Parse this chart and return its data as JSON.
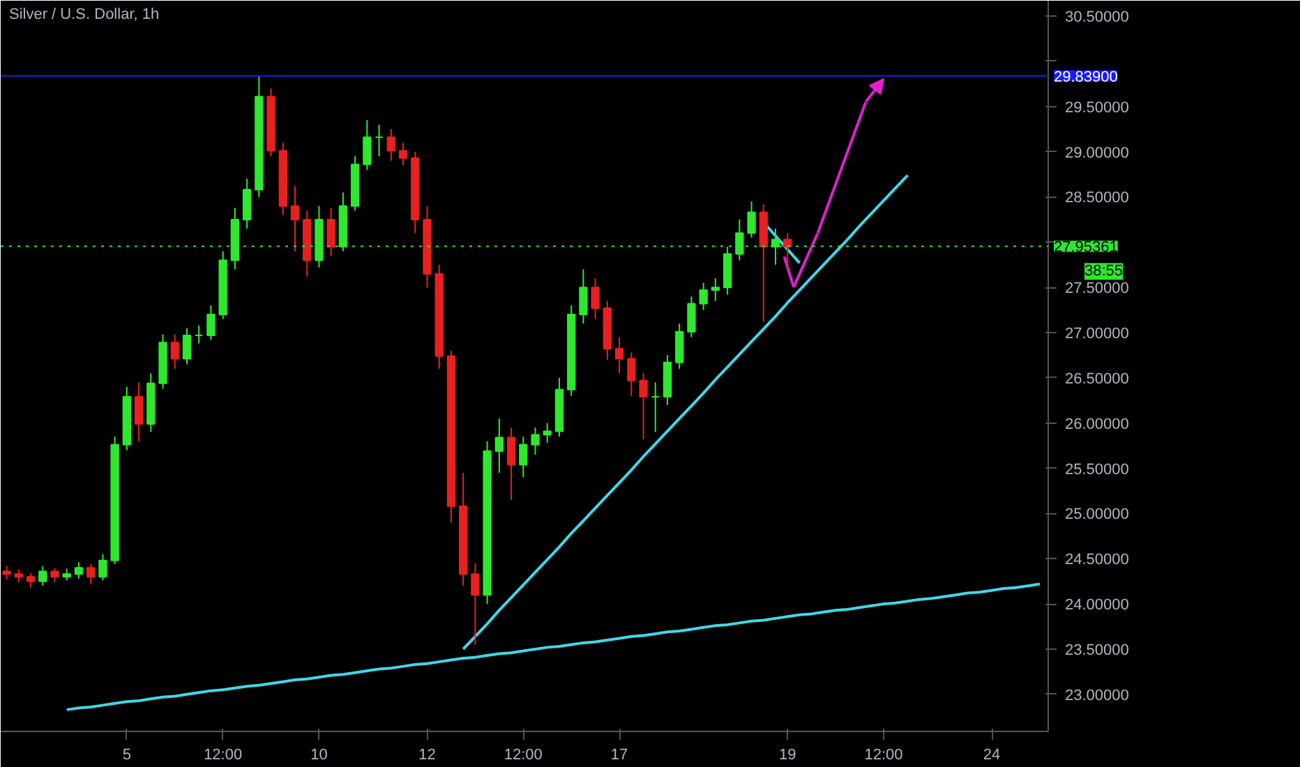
{
  "chart_data": {
    "type": "candlestick",
    "title": "Silver / U.S. Dollar, 1h",
    "categories": [
      null,
      null,
      null,
      null,
      null,
      null,
      null,
      null,
      null,
      null,
      "5",
      null,
      null,
      null,
      null,
      null,
      null,
      null,
      "12:00",
      null,
      null,
      null,
      null,
      null,
      null,
      null,
      "10",
      null,
      null,
      null,
      null,
      null,
      null,
      null,
      null,
      "12",
      null,
      null,
      null,
      null,
      null,
      null,
      null,
      "12:00",
      null,
      null,
      null,
      null,
      null,
      null,
      null,
      "17",
      null,
      null,
      null,
      null,
      null,
      null,
      null,
      null,
      null,
      null,
      null,
      null,
      null,
      "19",
      null,
      null,
      null,
      null,
      null,
      null,
      null,
      "12:00",
      null,
      null,
      null,
      null,
      null,
      null,
      null,
      null,
      "24",
      null,
      null,
      null,
      null
    ],
    "ohlc": [
      [
        24.36,
        24.42,
        24.27,
        24.33
      ],
      [
        24.33,
        24.38,
        24.24,
        24.3
      ],
      [
        24.3,
        24.34,
        24.18,
        24.25
      ],
      [
        24.25,
        24.42,
        24.2,
        24.36
      ],
      [
        24.36,
        24.4,
        24.24,
        24.3
      ],
      [
        24.3,
        24.39,
        24.26,
        24.33
      ],
      [
        24.33,
        24.46,
        24.28,
        24.4
      ],
      [
        24.4,
        24.44,
        24.22,
        24.3
      ],
      [
        24.3,
        24.55,
        24.26,
        24.48
      ],
      [
        24.48,
        25.85,
        24.44,
        25.76
      ],
      [
        25.76,
        26.4,
        25.7,
        26.29
      ],
      [
        26.29,
        26.45,
        25.8,
        25.99
      ],
      [
        25.99,
        26.55,
        25.9,
        26.44
      ],
      [
        26.44,
        26.98,
        26.38,
        26.89
      ],
      [
        26.89,
        26.98,
        26.6,
        26.71
      ],
      [
        26.71,
        27.05,
        26.65,
        26.97
      ],
      [
        26.97,
        27.08,
        26.88,
        26.97
      ],
      [
        26.97,
        27.3,
        26.92,
        27.2
      ],
      [
        27.2,
        27.9,
        27.15,
        27.8
      ],
      [
        27.8,
        28.38,
        27.7,
        28.25
      ],
      [
        28.25,
        28.7,
        28.15,
        28.58
      ],
      [
        28.58,
        29.84,
        28.5,
        29.61
      ],
      [
        29.61,
        29.7,
        28.95,
        29.01
      ],
      [
        29.01,
        29.1,
        28.3,
        28.4
      ],
      [
        28.4,
        28.62,
        27.9,
        28.25
      ],
      [
        28.25,
        28.35,
        27.62,
        27.8
      ],
      [
        27.8,
        28.4,
        27.72,
        28.25
      ],
      [
        28.25,
        28.38,
        27.85,
        27.95
      ],
      [
        27.95,
        28.55,
        27.9,
        28.4
      ],
      [
        28.4,
        28.95,
        28.35,
        28.86
      ],
      [
        28.86,
        29.35,
        28.8,
        29.16
      ],
      [
        29.16,
        29.3,
        28.95,
        29.16
      ],
      [
        29.16,
        29.25,
        28.9,
        29.01
      ],
      [
        29.01,
        29.1,
        28.85,
        28.93
      ],
      [
        28.93,
        29.0,
        28.1,
        28.25
      ],
      [
        28.25,
        28.4,
        27.5,
        27.65
      ],
      [
        27.65,
        27.75,
        26.6,
        26.74
      ],
      [
        26.74,
        26.8,
        24.9,
        25.08
      ],
      [
        25.08,
        25.45,
        24.2,
        24.33
      ],
      [
        24.33,
        24.45,
        23.55,
        24.1
      ],
      [
        24.1,
        25.8,
        24.0,
        25.69
      ],
      [
        25.69,
        26.05,
        25.45,
        25.84
      ],
      [
        25.84,
        25.95,
        25.15,
        25.54
      ],
      [
        25.54,
        25.85,
        25.4,
        25.76
      ],
      [
        25.76,
        25.95,
        25.65,
        25.87
      ],
      [
        25.87,
        26.0,
        25.78,
        25.91
      ],
      [
        25.91,
        26.5,
        25.85,
        26.37
      ],
      [
        26.37,
        27.3,
        26.3,
        27.2
      ],
      [
        27.2,
        27.7,
        27.1,
        27.5
      ],
      [
        27.5,
        27.6,
        27.15,
        27.27
      ],
      [
        27.27,
        27.35,
        26.7,
        26.82
      ],
      [
        26.82,
        26.95,
        26.55,
        26.71
      ],
      [
        26.71,
        26.78,
        26.3,
        26.47
      ],
      [
        26.47,
        26.55,
        25.82,
        26.29
      ],
      [
        26.29,
        26.45,
        25.9,
        26.29
      ],
      [
        26.29,
        26.75,
        26.2,
        26.67
      ],
      [
        26.67,
        27.1,
        26.6,
        27.01
      ],
      [
        27.01,
        27.4,
        26.95,
        27.32
      ],
      [
        27.32,
        27.55,
        27.25,
        27.47
      ],
      [
        27.47,
        27.6,
        27.35,
        27.5
      ],
      [
        27.5,
        27.95,
        27.42,
        27.87
      ],
      [
        27.87,
        28.25,
        27.8,
        28.1
      ],
      [
        28.1,
        28.45,
        28.05,
        28.33
      ],
      [
        28.33,
        28.42,
        27.12,
        27.95
      ],
      [
        27.95,
        28.15,
        27.75,
        28.03
      ],
      [
        28.03,
        28.1,
        27.7,
        27.95
      ],
      null,
      null,
      null,
      null,
      null,
      null,
      null,
      null,
      null,
      null,
      null,
      null,
      null,
      null,
      null,
      null,
      null,
      null,
      null,
      null,
      null
    ],
    "colors": [
      "#e82020",
      "#e82020",
      "#e82020",
      "#2ee82e",
      "#e82020",
      "#2ee82e",
      "#2ee82e",
      "#e82020",
      "#2ee82e",
      "#2ee82e",
      "#2ee82e",
      "#e82020",
      "#2ee82e",
      "#2ee82e",
      "#e82020",
      "#2ee82e",
      "#2ee82e",
      "#2ee82e",
      "#2ee82e",
      "#2ee82e",
      "#2ee82e",
      "#2ee82e",
      "#e82020",
      "#e82020",
      "#e82020",
      "#e82020",
      "#2ee82e",
      "#e82020",
      "#2ee82e",
      "#2ee82e",
      "#2ee82e",
      "#2ee82e",
      "#e82020",
      "#e82020",
      "#e82020",
      "#e82020",
      "#e82020",
      "#e82020",
      "#e82020",
      "#e82020",
      "#2ee82e",
      "#2ee82e",
      "#e82020",
      "#2ee82e",
      "#2ee82e",
      "#2ee82e",
      "#2ee82e",
      "#2ee82e",
      "#2ee82e",
      "#e82020",
      "#e82020",
      "#e82020",
      "#e82020",
      "#e82020",
      "#2ee82e",
      "#2ee82e",
      "#2ee82e",
      "#2ee82e",
      "#2ee82e",
      "#2ee82e",
      "#2ee82e",
      "#2ee82e",
      "#2ee82e",
      "#e82020",
      "#2ee82e",
      "#e82020",
      null,
      null,
      null,
      null,
      null,
      null,
      null,
      null,
      null,
      null,
      null,
      null,
      null,
      null,
      null,
      null,
      null,
      null,
      null,
      null,
      null
    ],
    "series": [
      {
        "type": "line",
        "color": "#3fd8e8",
        "values": [
          null,
          null,
          null,
          null,
          null,
          null,
          null,
          null,
          null,
          null,
          null,
          null,
          null,
          null,
          null,
          null,
          null,
          null,
          null,
          null,
          null,
          null,
          null,
          null,
          null,
          null,
          null,
          null,
          null,
          null,
          null,
          null,
          null,
          null,
          null,
          null,
          null,
          null,
          23.5,
          23.64,
          23.78,
          23.93,
          24.07,
          24.21,
          24.35,
          24.49,
          24.63,
          24.78,
          24.92,
          25.06,
          25.2,
          25.34,
          25.48,
          25.63,
          25.77,
          25.91,
          26.05,
          26.19,
          26.33,
          26.48,
          26.62,
          26.76,
          26.9,
          27.04,
          27.18,
          27.33,
          27.47,
          27.61,
          27.75,
          27.89,
          28.03,
          28.18,
          28.32,
          28.46,
          28.6,
          28.74,
          null,
          null,
          null,
          null,
          null,
          null,
          null,
          null,
          null,
          null,
          null
        ]
      },
      {
        "type": "line",
        "color": "#3fd8e8",
        "values": [
          null,
          null,
          null,
          null,
          null,
          22.83,
          22.85,
          22.86,
          22.88,
          22.9,
          22.92,
          22.93,
          22.95,
          22.97,
          22.98,
          23.0,
          23.02,
          23.04,
          23.05,
          23.07,
          23.09,
          23.1,
          23.12,
          23.14,
          23.16,
          23.17,
          23.19,
          23.21,
          23.22,
          23.24,
          23.26,
          23.28,
          23.29,
          23.31,
          23.33,
          23.34,
          23.36,
          23.38,
          23.4,
          23.41,
          23.43,
          23.45,
          23.46,
          23.48,
          23.5,
          23.52,
          23.53,
          23.55,
          23.57,
          23.58,
          23.6,
          23.62,
          23.64,
          23.65,
          23.67,
          23.69,
          23.7,
          23.72,
          23.74,
          23.76,
          23.77,
          23.79,
          23.81,
          23.82,
          23.84,
          23.86,
          23.88,
          23.89,
          23.91,
          23.93,
          23.94,
          23.96,
          23.98,
          24.0,
          24.01,
          24.03,
          24.05,
          24.06,
          24.08,
          24.1,
          24.12,
          24.13,
          24.15,
          24.17,
          24.18,
          24.2,
          24.22
        ]
      },
      {
        "type": "line",
        "color": "#3fd8e8",
        "values": [
          null,
          null,
          null,
          null,
          null,
          null,
          null,
          null,
          null,
          null,
          null,
          null,
          null,
          null,
          null,
          null,
          null,
          null,
          null,
          null,
          null,
          null,
          null,
          null,
          null,
          null,
          null,
          null,
          null,
          null,
          null,
          null,
          null,
          null,
          null,
          null,
          null,
          null,
          null,
          null,
          null,
          null,
          null,
          null,
          null,
          null,
          null,
          null,
          null,
          null,
          null,
          null,
          null,
          null,
          null,
          null,
          null,
          null,
          null,
          null,
          null,
          null,
          null,
          28.22,
          28.07,
          27.92,
          27.77,
          null,
          null,
          null,
          null,
          null,
          null,
          null,
          null,
          null,
          null,
          null,
          null,
          null,
          null,
          null,
          null,
          null,
          null,
          null,
          null
        ]
      }
    ],
    "ref_lines": [
      {
        "axis": "y",
        "value": 29.839,
        "label": "29.83900",
        "color": "#1a1aff",
        "line_style": "solid"
      },
      {
        "axis": "y",
        "value": 27.95361,
        "label": "27.95361",
        "color": "#2ee82e",
        "line_style": "dotted"
      }
    ],
    "annotations": [
      "38:55"
    ],
    "ylim": [
      22.59,
      30.67
    ],
    "yticks": [
      {
        "value": 23.0,
        "label": "23.00000"
      },
      {
        "value": 23.5,
        "label": "23.50000"
      },
      {
        "value": 24.0,
        "label": "24.00000"
      },
      {
        "value": 24.5,
        "label": "24.50000"
      },
      {
        "value": 25.0,
        "label": "25.00000"
      },
      {
        "value": 25.5,
        "label": "25.50000"
      },
      {
        "value": 26.0,
        "label": "26.00000"
      },
      {
        "value": 26.5,
        "label": "26.50000"
      },
      {
        "value": 27.0,
        "label": "27.00000"
      },
      {
        "value": 27.5,
        "label": "27.50000"
      },
      {
        "value": 28.0,
        "label": null
      },
      {
        "value": 28.5,
        "label": "28.50000"
      },
      {
        "value": 29.0,
        "label": "29.00000"
      },
      {
        "value": 29.5,
        "label": "29.50000"
      },
      {
        "value": 30.0,
        "label": null
      },
      {
        "value": 30.5,
        "label": "30.50000"
      }
    ],
    "grid": false
  }
}
